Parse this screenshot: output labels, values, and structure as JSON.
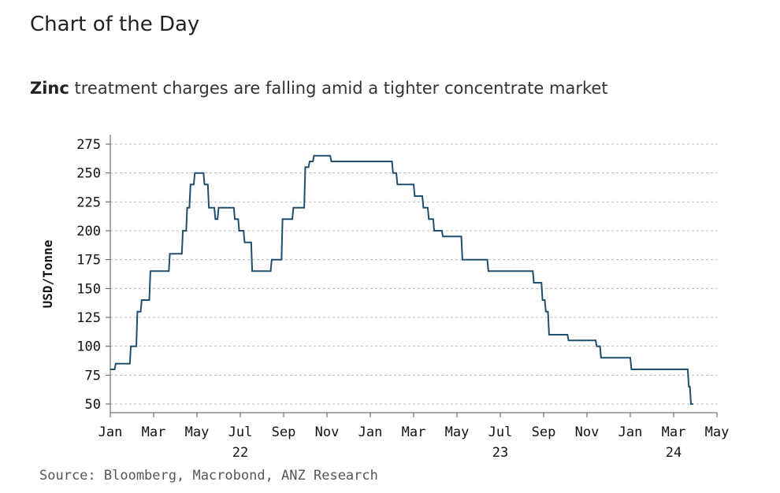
{
  "header": {
    "title": "Chart of the Day",
    "subtitle_bold": "Zinc",
    "subtitle_rest": " treatment charges are falling amid a tighter concentrate market"
  },
  "source": "Source:  Bloomberg, Macrobond, ANZ Research",
  "colors": {
    "line": "#1f4e6e",
    "grid": "#bbbbbb",
    "axis": "#555555"
  },
  "chart_data": {
    "type": "line",
    "title": "Zinc treatment charges are falling amid a tighter concentrate market",
    "xlabel": "",
    "ylabel": "USD/Tonne",
    "ylim": [
      50,
      275
    ],
    "yticks": [
      50,
      75,
      100,
      125,
      150,
      175,
      200,
      225,
      250,
      275
    ],
    "xlim": [
      0,
      28
    ],
    "grid": "horizontal dashed",
    "xticks": [
      {
        "m": 0,
        "label": "Jan"
      },
      {
        "m": 2,
        "label": "Mar"
      },
      {
        "m": 4,
        "label": "May"
      },
      {
        "m": 6,
        "label": "Jul",
        "year": "22"
      },
      {
        "m": 8,
        "label": "Sep"
      },
      {
        "m": 10,
        "label": "Nov"
      },
      {
        "m": 12,
        "label": "Jan"
      },
      {
        "m": 14,
        "label": "Mar"
      },
      {
        "m": 16,
        "label": "May"
      },
      {
        "m": 18,
        "label": "Jul",
        "year": "23"
      },
      {
        "m": 20,
        "label": "Sep"
      },
      {
        "m": 22,
        "label": "Nov"
      },
      {
        "m": 24,
        "label": "Jan"
      },
      {
        "m": 26,
        "label": "Mar",
        "year": "24"
      },
      {
        "m": 28,
        "label": "May"
      }
    ],
    "series": [
      {
        "name": "Zinc treatment charge",
        "x_unit": "months since Jan 2022",
        "x": [
          0.0,
          0.2,
          0.25,
          0.9,
          0.95,
          1.2,
          1.25,
          1.4,
          1.45,
          1.8,
          1.85,
          1.95,
          2.0,
          2.7,
          2.75,
          3.3,
          3.35,
          3.5,
          3.55,
          3.65,
          3.7,
          3.85,
          3.9,
          4.3,
          4.35,
          4.5,
          4.55,
          4.8,
          4.85,
          4.95,
          5.0,
          5.15,
          5.2,
          5.7,
          5.75,
          5.9,
          5.95,
          6.15,
          6.2,
          6.5,
          6.55,
          7.0,
          7.05,
          7.4,
          7.45,
          7.9,
          7.95,
          8.4,
          8.45,
          8.95,
          9.0,
          9.15,
          9.2,
          9.35,
          9.4,
          9.55,
          9.6,
          10.15,
          10.2,
          13.0,
          13.05,
          13.2,
          13.25,
          14.0,
          14.05,
          14.4,
          14.45,
          14.65,
          14.7,
          14.9,
          14.95,
          15.3,
          15.35,
          15.9,
          15.95,
          16.2,
          16.25,
          17.4,
          17.45,
          18.2,
          18.25,
          19.5,
          19.55,
          19.9,
          19.95,
          20.05,
          20.1,
          20.2,
          20.25,
          21.1,
          21.15,
          22.4,
          22.45,
          22.6,
          22.65,
          24.0,
          24.05,
          26.65,
          26.7,
          26.75,
          26.8,
          26.9
        ]
      }
    ],
    "values_note": "y values in USD/Tonne, paired with x",
    "y": [
      80,
      80,
      85,
      85,
      100,
      100,
      130,
      130,
      140,
      140,
      165,
      165,
      165,
      165,
      180,
      180,
      200,
      200,
      220,
      220,
      240,
      240,
      250,
      250,
      240,
      240,
      220,
      220,
      210,
      210,
      220,
      220,
      220,
      220,
      210,
      210,
      200,
      200,
      190,
      190,
      165,
      165,
      165,
      165,
      175,
      175,
      210,
      210,
      220,
      220,
      255,
      255,
      260,
      260,
      265,
      265,
      265,
      265,
      260,
      260,
      250,
      250,
      240,
      240,
      230,
      230,
      220,
      220,
      210,
      210,
      200,
      200,
      195,
      195,
      195,
      195,
      175,
      175,
      165,
      165,
      165,
      165,
      155,
      155,
      140,
      140,
      130,
      130,
      110,
      110,
      105,
      105,
      100,
      100,
      90,
      90,
      80,
      80,
      65,
      65,
      50,
      50
    ]
  }
}
